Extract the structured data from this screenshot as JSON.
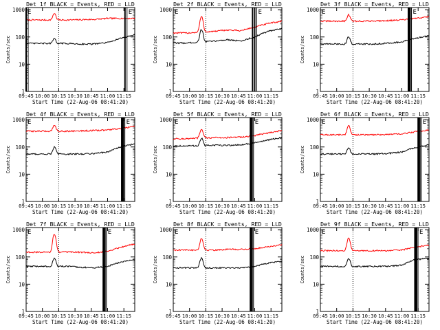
{
  "common": {
    "title_suffix": " BLACK = Events, RED = LLD",
    "ylabel": "Counts/sec",
    "xlabel": "Start Time (22-Aug-06 08:41:20)",
    "x_ticks": [
      "09:45",
      "10:00",
      "10:15",
      "10:30",
      "10:45",
      "11:00",
      "11:15"
    ],
    "y_ticks": [
      "1",
      "10",
      "100",
      "1000"
    ],
    "yscale": "log",
    "ylim": [
      1,
      1200
    ],
    "xlim_minutes": [
      0,
      100
    ],
    "marker_labels": [
      "E",
      "E"
    ],
    "colors": {
      "events": "#000000",
      "lld": "#ff0000"
    }
  },
  "chart_data": [
    {
      "title": "Det 1f",
      "type": "line",
      "marks": {
        "s": 0,
        "e": 91
      },
      "series": [
        {
          "name": "RED",
          "color": "#ff0000",
          "level": [
            420,
            420,
            420,
            420,
            430,
            440,
            480,
            480,
            480
          ],
          "bump": 740
        },
        {
          "name": "BLACK",
          "color": "#000000",
          "level": [
            58,
            58,
            58,
            58,
            55,
            55,
            62,
            90,
            120
          ],
          "bump": 85
        }
      ]
    },
    {
      "title": "Det 2f",
      "type": "line",
      "marks": {
        "s": 73,
        "e": 75
      },
      "series": [
        {
          "name": "RED",
          "color": "#ff0000",
          "level": [
            140,
            140,
            150,
            160,
            180,
            170,
            230,
            310,
            380
          ],
          "bump": 560
        },
        {
          "name": "BLACK",
          "color": "#000000",
          "level": [
            60,
            60,
            65,
            70,
            80,
            70,
            100,
            160,
            200
          ],
          "bump": 190
        }
      ]
    },
    {
      "title": "Det 3f",
      "type": "line",
      "marks": {
        "s": 81,
        "e": 82
      },
      "series": [
        {
          "name": "RED",
          "color": "#ff0000",
          "level": [
            380,
            380,
            380,
            380,
            390,
            400,
            420,
            480,
            550
          ],
          "bump": 650
        },
        {
          "name": "BLACK",
          "color": "#000000",
          "level": [
            55,
            55,
            55,
            55,
            55,
            60,
            65,
            90,
            110
          ],
          "bump": 100
        }
      ]
    },
    {
      "title": "Det 4f",
      "type": "line",
      "marks": {
        "s": 88,
        "e": 89
      },
      "series": [
        {
          "name": "RED",
          "color": "#ff0000",
          "level": [
            380,
            380,
            380,
            380,
            390,
            400,
            420,
            480,
            560
          ],
          "bump": 640
        },
        {
          "name": "BLACK",
          "color": "#000000",
          "level": [
            55,
            55,
            55,
            55,
            55,
            58,
            65,
            100,
            130
          ],
          "bump": 100
        }
      ]
    },
    {
      "title": "Det 5f",
      "type": "line",
      "marks": {
        "s": 71,
        "e": 72
      },
      "series": [
        {
          "name": "RED",
          "color": "#ff0000",
          "level": [
            200,
            200,
            210,
            220,
            220,
            230,
            260,
            330,
            400
          ],
          "bump": 440
        },
        {
          "name": "BLACK",
          "color": "#000000",
          "level": [
            110,
            110,
            110,
            115,
            115,
            120,
            140,
            180,
            220
          ],
          "bump": 210
        }
      ]
    },
    {
      "title": "Det 6f",
      "type": "line",
      "marks": {
        "s": 90,
        "e": 91
      },
      "series": [
        {
          "name": "RED",
          "color": "#ff0000",
          "level": [
            280,
            280,
            280,
            280,
            280,
            290,
            300,
            360,
            420
          ],
          "bump": 600
        },
        {
          "name": "BLACK",
          "color": "#000000",
          "level": [
            55,
            55,
            55,
            55,
            55,
            58,
            65,
            95,
            120
          ],
          "bump": 95
        }
      ]
    },
    {
      "title": "Det 7f",
      "type": "line",
      "marks": {
        "s": 71,
        "e": 72
      },
      "series": [
        {
          "name": "RED",
          "color": "#ff0000",
          "level": [
            150,
            150,
            150,
            150,
            150,
            140,
            160,
            230,
            300
          ],
          "bump": 700
        },
        {
          "name": "BLACK",
          "color": "#000000",
          "level": [
            45,
            45,
            45,
            45,
            42,
            40,
            45,
            65,
            80
          ],
          "bump": 90
        }
      ]
    },
    {
      "title": "Det 8f",
      "type": "line",
      "marks": {
        "s": 71,
        "e": 72
      },
      "series": [
        {
          "name": "RED",
          "color": "#ff0000",
          "level": [
            180,
            180,
            180,
            180,
            190,
            190,
            200,
            240,
            280
          ],
          "bump": 480
        },
        {
          "name": "BLACK",
          "color": "#000000",
          "level": [
            40,
            40,
            40,
            40,
            40,
            40,
            45,
            60,
            70
          ],
          "bump": 90
        }
      ]
    },
    {
      "title": "Det 9f",
      "type": "line",
      "marks": {
        "s": 87,
        "e": 88
      },
      "series": [
        {
          "name": "RED",
          "color": "#ff0000",
          "level": [
            170,
            170,
            170,
            170,
            170,
            170,
            180,
            230,
            270
          ],
          "bump": 490
        },
        {
          "name": "BLACK",
          "color": "#000000",
          "level": [
            45,
            45,
            45,
            45,
            45,
            45,
            50,
            80,
            90
          ],
          "bump": 90
        }
      ]
    }
  ]
}
